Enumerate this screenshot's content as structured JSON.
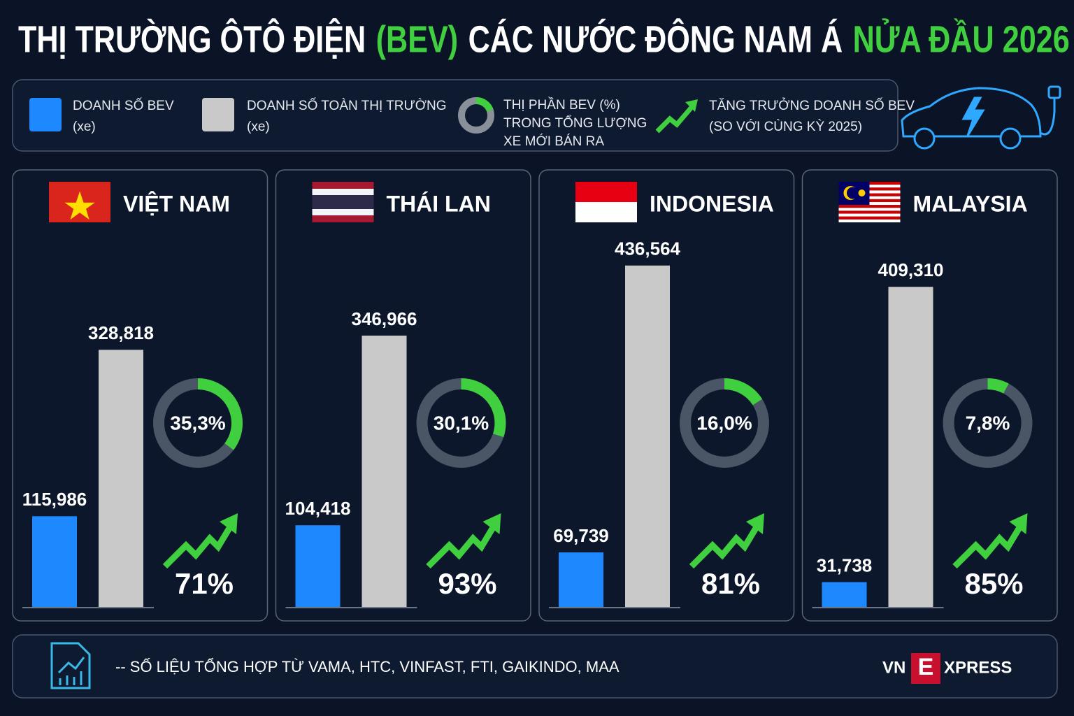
{
  "title": [
    "THỊ TRƯỜNG ÔTÔ ĐIỆN",
    "(BEV)",
    "CÁC NƯỚC ĐÔNG NAM Á",
    "NỬA ĐẦU 2026"
  ],
  "legend": [
    {
      "lines": [
        "DOANH SỐ BEV",
        "(xe)"
      ]
    },
    {
      "lines": [
        "DOANH SỐ TOÀN THỊ TRƯỜNG",
        "(xe)"
      ]
    },
    {
      "lines": [
        "THỊ PHẦN BEV (%)",
        "TRONG TỔNG LƯỢNG",
        "XE MỚI BÁN RA"
      ]
    },
    {
      "lines": [
        "TĂNG TRƯỞNG DOANH SỐ BEV",
        "(SO VỚI CÙNG KỲ 2025)"
      ]
    }
  ],
  "chart_data": [
    {
      "type": "bar",
      "title": "VIỆT NAM",
      "ylim": [
        0,
        490000
      ],
      "series": [
        {
          "color": "#1e88ff",
          "values": [
            115986
          ],
          "value_labels": [
            "115,986"
          ]
        },
        {
          "color": "#c9c9c9",
          "values": [
            328818
          ],
          "value_labels": [
            "328,818"
          ]
        }
      ],
      "share": {
        "value": 35.3,
        "label": "35,3%"
      },
      "growth": {
        "value": 71,
        "label": "71%"
      }
    },
    {
      "type": "bar",
      "title": "THÁI LAN",
      "ylim": [
        0,
        490000
      ],
      "series": [
        {
          "color": "#1e88ff",
          "values": [
            104418
          ],
          "value_labels": [
            "104,418"
          ]
        },
        {
          "color": "#c9c9c9",
          "values": [
            346966
          ],
          "value_labels": [
            "346,966"
          ]
        }
      ],
      "share": {
        "value": 30.1,
        "label": "30,1%"
      },
      "growth": {
        "value": 93,
        "label": "93%"
      }
    },
    {
      "type": "bar",
      "title": "INDONESIA",
      "ylim": [
        0,
        490000
      ],
      "series": [
        {
          "color": "#1e88ff",
          "values": [
            69739
          ],
          "value_labels": [
            "69,739"
          ]
        },
        {
          "color": "#c9c9c9",
          "values": [
            436564
          ],
          "value_labels": [
            "436,564"
          ]
        }
      ],
      "share": {
        "value": 16.0,
        "label": "16,0%"
      },
      "growth": {
        "value": 81,
        "label": "81%"
      }
    },
    {
      "type": "bar",
      "title": "MALAYSIA",
      "ylim": [
        0,
        490000
      ],
      "series": [
        {
          "color": "#1e88ff",
          "values": [
            31738
          ],
          "value_labels": [
            "31,738"
          ]
        },
        {
          "color": "#c9c9c9",
          "values": [
            409310
          ],
          "value_labels": [
            "409,310"
          ]
        }
      ],
      "share": {
        "value": 7.8,
        "label": "7,8%"
      },
      "growth": {
        "value": 85,
        "label": "85%"
      }
    }
  ],
  "footer": {
    "source": "-- SỐ LIỆU TỔNG HỢP TỪ VAMA, HTC, VINFAST, FTI, GAIKINDO, MAA",
    "logo": [
      "VN",
      "E",
      "XPRESS"
    ]
  }
}
